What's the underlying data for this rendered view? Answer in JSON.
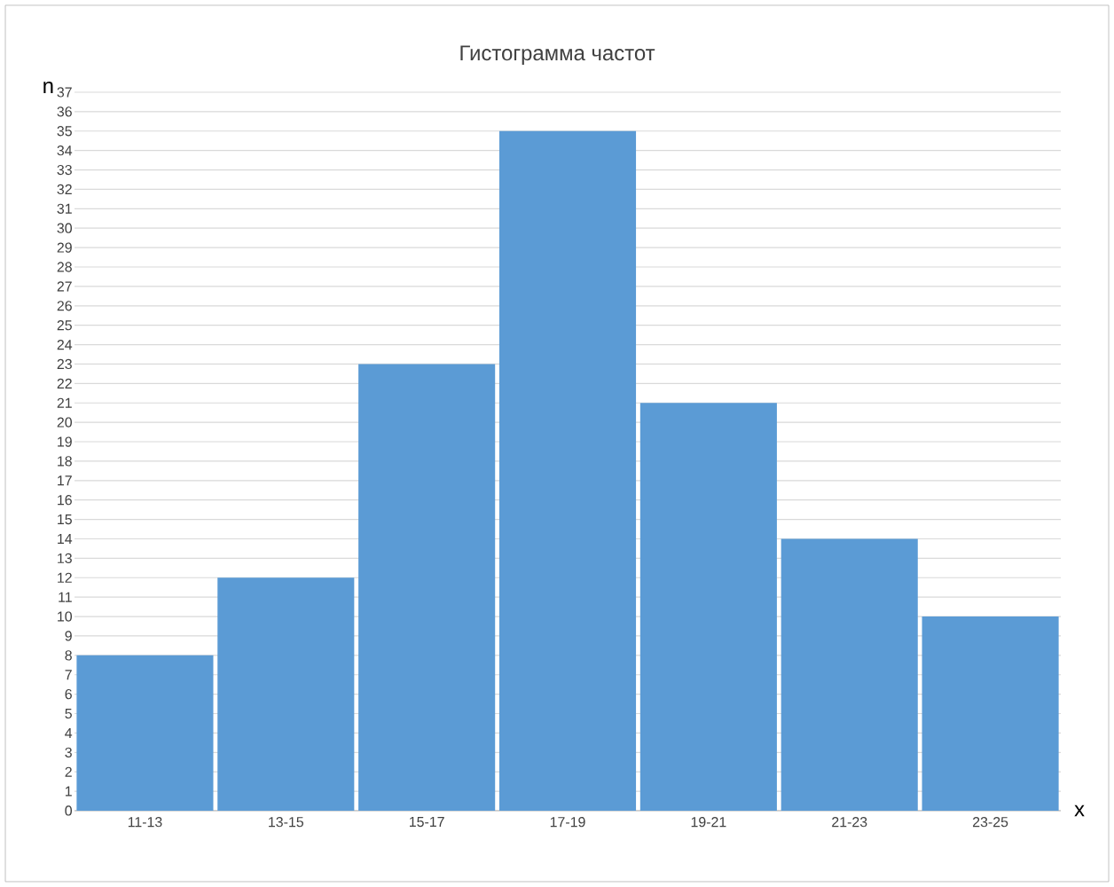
{
  "chart_data": {
    "type": "bar",
    "title": "Гистограмма частот",
    "xlabel": "x",
    "ylabel": "n",
    "categories": [
      "11-13",
      "13-15",
      "15-17",
      "17-19",
      "19-21",
      "21-23",
      "23-25"
    ],
    "values": [
      8,
      12,
      23,
      35,
      21,
      14,
      10
    ],
    "color": "#5b9bd5",
    "ylim": [
      0,
      37
    ],
    "yticks": [
      0,
      1,
      2,
      3,
      4,
      5,
      6,
      7,
      8,
      9,
      10,
      11,
      12,
      13,
      14,
      15,
      16,
      17,
      18,
      19,
      20,
      21,
      22,
      23,
      24,
      25,
      26,
      27,
      28,
      29,
      30,
      31,
      32,
      33,
      34,
      35,
      36,
      37
    ],
    "grid": "y"
  }
}
